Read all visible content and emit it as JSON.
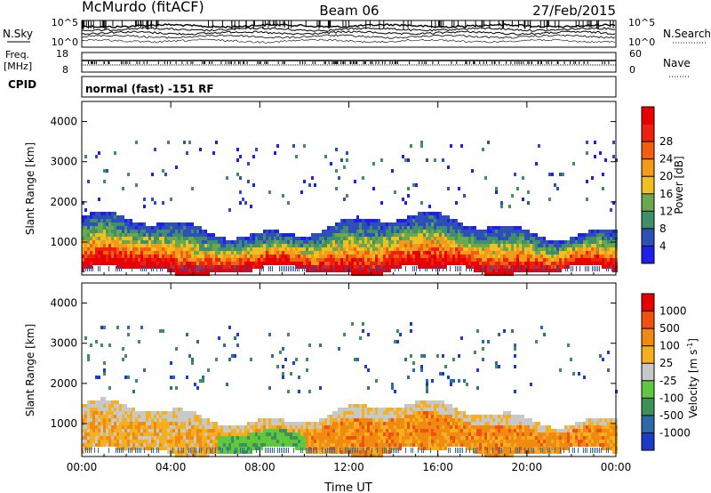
{
  "header": {
    "station": "McMurdo (fitACF)",
    "beam": "Beam 06",
    "date": "27/Feb/2015"
  },
  "noise_panel": {
    "left_label": "N.Sky",
    "right_label": "N.Search",
    "left_ticks": [
      "10^5",
      "10^0"
    ],
    "right_ticks": [
      "10^5",
      "10^0"
    ]
  },
  "freq_panel": {
    "left_label_1": "Freq.",
    "left_label_2": "[MHz]",
    "right_label": "Nave",
    "left_ticks": [
      "18",
      "8"
    ],
    "right_ticks": [
      "60",
      "0"
    ]
  },
  "cpid_panel": {
    "label": "CPID",
    "text": "normal (fast) -151 RF"
  },
  "chart_data": [
    {
      "type": "heatmap",
      "quantity": "Power",
      "ylabel": "Slant Range [km]",
      "xlabel": "",
      "ylim": [
        180,
        4500
      ],
      "yticks": [
        "1000",
        "2000",
        "3000",
        "4000"
      ],
      "xticks": [
        "00:00",
        "04:00",
        "08:00",
        "12:00",
        "16:00",
        "20:00",
        "00:00"
      ],
      "colorbar_label": "Power [dB]",
      "colorbar_ticks": [
        "4",
        "8",
        "12",
        "16",
        "20",
        "24",
        "28"
      ],
      "colorbar_colors": [
        "#1f1fe8",
        "#2f4fb8",
        "#3f8f6a",
        "#6aa84f",
        "#f0c020",
        "#f39a1a",
        "#f06010",
        "#f02010",
        "#e80000"
      ]
    },
    {
      "type": "heatmap",
      "quantity": "Velocity",
      "ylabel": "Slant Range [km]",
      "xlabel": "Time UT",
      "ylim": [
        180,
        4500
      ],
      "yticks": [
        "1000",
        "2000",
        "3000",
        "4000"
      ],
      "xticks": [
        "00:00",
        "04:00",
        "08:00",
        "12:00",
        "16:00",
        "20:00",
        "00:00"
      ],
      "colorbar_label": "Velocity [m s^-1]",
      "colorbar_ticks": [
        "1000",
        "500",
        "100",
        "25",
        "-25",
        "-100",
        "-500",
        "-1000"
      ],
      "colorbar_colors": [
        "#1a3cc8",
        "#2f6aa8",
        "#3f8f5a",
        "#5fc83f",
        "#c8c8c8",
        "#f5b020",
        "#f08a10",
        "#f05010",
        "#e80000"
      ]
    }
  ]
}
